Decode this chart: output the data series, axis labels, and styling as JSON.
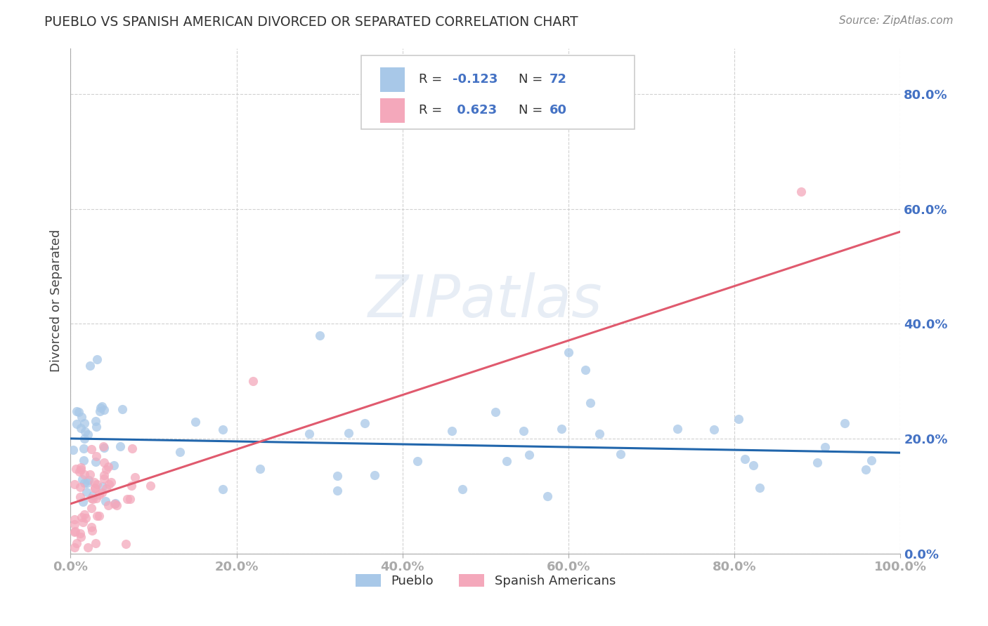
{
  "title": "PUEBLO VS SPANISH AMERICAN DIVORCED OR SEPARATED CORRELATION CHART",
  "source": "Source: ZipAtlas.com",
  "ylabel": "Divorced or Separated",
  "legend1_label": "Pueblo",
  "legend2_label": "Spanish Americans",
  "R1": -0.123,
  "N1": 72,
  "R2": 0.623,
  "N2": 60,
  "blue_color": "#a8c8e8",
  "pink_color": "#f4a8bb",
  "blue_line_color": "#2166ac",
  "pink_line_color": "#e05a6e",
  "xlim": [
    0.0,
    1.0
  ],
  "ylim": [
    0.0,
    0.88
  ],
  "xticks": [
    0.0,
    0.2,
    0.4,
    0.6,
    0.8,
    1.0
  ],
  "yticks": [
    0.0,
    0.2,
    0.4,
    0.6,
    0.8
  ],
  "xticklabels": [
    "0.0%",
    "20.0%",
    "40.0%",
    "60.0%",
    "80.0%",
    "100.0%"
  ],
  "yticklabels": [
    "0.0%",
    "20.0%",
    "40.0%",
    "60.0%",
    "80.0%"
  ],
  "watermark": "ZIPatlas",
  "background_color": "#ffffff",
  "grid_color": "#cccccc",
  "tick_color": "#4472c4",
  "title_color": "#333333",
  "ylabel_color": "#444444",
  "legend_text_color": "#333333",
  "legend_n_color": "#4472c4"
}
